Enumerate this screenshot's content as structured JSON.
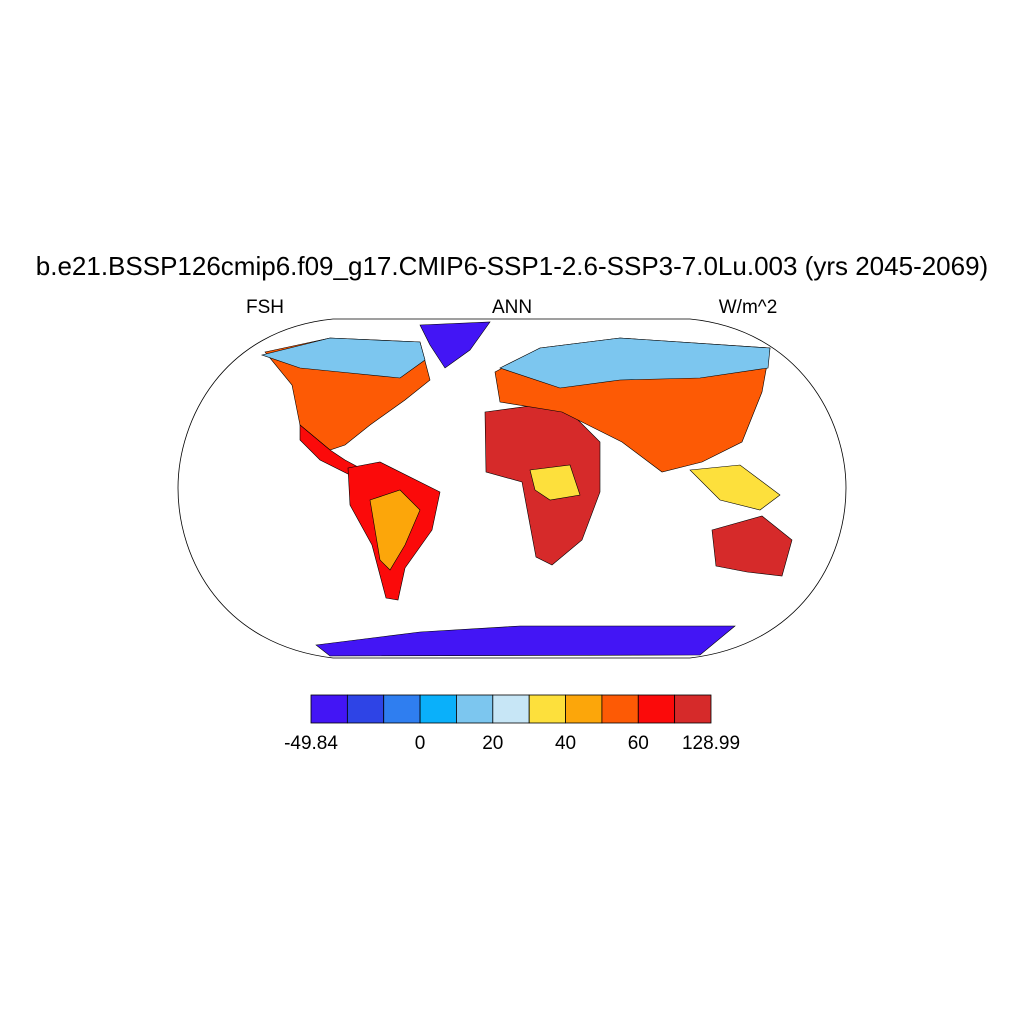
{
  "title": "b.e21.BSSP126cmip6.f09_g17.CMIP6-SSP1-2.6-SSP3-7.0Lu.003 (yrs 2045-2069)",
  "left_string": "FSH",
  "center_string": "ANN",
  "right_string": "W/m^2",
  "colorbar": {
    "colors": [
      "#4315f5",
      "#2e44e6",
      "#2f7ef0",
      "#0ab0fa",
      "#7cc6ef",
      "#c7e6f6",
      "#fde03c",
      "#fca60a",
      "#fd5a05",
      "#fb0a0a",
      "#d62a2a"
    ],
    "labels": [
      "-49.84",
      "0",
      "20",
      "40",
      "60",
      "128.99"
    ]
  }
}
